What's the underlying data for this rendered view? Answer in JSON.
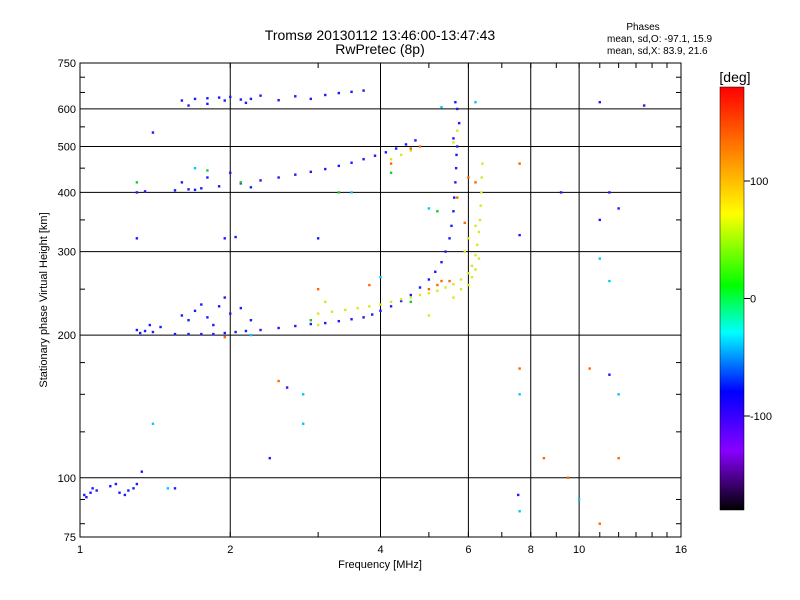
{
  "chart_data": {
    "type": "scatter",
    "title": "Tromsø 20130112 13:46:00-13:47:43",
    "subtitle": "RwPretec (8p)",
    "xlabel": "Frequency [MHz]",
    "ylabel": "Stationary phase Virtual Height [km]",
    "x_scale": "log",
    "y_scale": "log",
    "xlim": [
      1,
      16
    ],
    "ylim": [
      75,
      750
    ],
    "x_ticks": [
      1,
      2,
      4,
      6,
      8,
      10,
      16
    ],
    "y_ticks": [
      75,
      100,
      200,
      300,
      400,
      500,
      600,
      750
    ],
    "x_gridlines": [
      2,
      4,
      6,
      8,
      10
    ],
    "y_gridlines": [
      100,
      200,
      300,
      400,
      500,
      600
    ],
    "grid": true,
    "stats": {
      "heading": "Phases",
      "line_o": "mean, sd,O: -97.1, 15.9",
      "line_x": "mean, sd,X:  83.9, 21.6"
    },
    "colorbar": {
      "label": "[deg]",
      "range": [
        -180,
        180
      ],
      "ticks": [
        100,
        0,
        -100
      ],
      "tick_labels": [
        "100",
        "0",
        "-100"
      ],
      "colors": [
        "#ff0000",
        "#ff8800",
        "#ffff00",
        "#00ff00",
        "#00ffff",
        "#0000ff",
        "#8800ff",
        "#000000"
      ]
    },
    "series": [
      {
        "mode": "O",
        "phase_deg": -100,
        "color": "#1a1aff",
        "points": [
          [
            1.02,
            92
          ],
          [
            1.05,
            93
          ],
          [
            1.08,
            94
          ],
          [
            1.03,
            91
          ],
          [
            1.06,
            95
          ],
          [
            1.15,
            96
          ],
          [
            1.2,
            93
          ],
          [
            1.25,
            94
          ],
          [
            1.28,
            95
          ],
          [
            1.3,
            97
          ],
          [
            1.33,
            103
          ],
          [
            1.23,
            92
          ],
          [
            1.18,
            97
          ],
          [
            1.3,
            205
          ],
          [
            1.35,
            204
          ],
          [
            1.4,
            203
          ],
          [
            1.32,
            202
          ],
          [
            1.45,
            208
          ],
          [
            1.38,
            210
          ],
          [
            1.55,
            201
          ],
          [
            1.65,
            201
          ],
          [
            1.75,
            201
          ],
          [
            1.85,
            201
          ],
          [
            1.95,
            202
          ],
          [
            2.05,
            203
          ],
          [
            2.15,
            204
          ],
          [
            2.3,
            205
          ],
          [
            2.5,
            207
          ],
          [
            2.7,
            209
          ],
          [
            2.9,
            211
          ],
          [
            3.1,
            212
          ],
          [
            3.3,
            214
          ],
          [
            3.5,
            216
          ],
          [
            3.7,
            218
          ],
          [
            3.85,
            221
          ],
          [
            4.0,
            225
          ],
          [
            4.2,
            230
          ],
          [
            4.4,
            236
          ],
          [
            4.6,
            243
          ],
          [
            4.8,
            252
          ],
          [
            5.0,
            262
          ],
          [
            5.15,
            272
          ],
          [
            5.3,
            285
          ],
          [
            5.4,
            300
          ],
          [
            5.5,
            320
          ],
          [
            5.55,
            340
          ],
          [
            5.6,
            365
          ],
          [
            5.62,
            390
          ],
          [
            5.65,
            420
          ],
          [
            5.67,
            450
          ],
          [
            5.68,
            480
          ],
          [
            5.7,
            500
          ],
          [
            1.6,
            220
          ],
          [
            1.7,
            225
          ],
          [
            1.8,
            218
          ],
          [
            1.9,
            230
          ],
          [
            2.0,
            222
          ],
          [
            2.1,
            228
          ],
          [
            2.2,
            215
          ],
          [
            1.65,
            215
          ],
          [
            1.75,
            232
          ],
          [
            1.85,
            210
          ],
          [
            1.95,
            240
          ],
          [
            1.3,
            400
          ],
          [
            1.35,
            402
          ],
          [
            1.55,
            404
          ],
          [
            1.65,
            406
          ],
          [
            1.75,
            408
          ],
          [
            1.9,
            412
          ],
          [
            2.1,
            418
          ],
          [
            2.3,
            424
          ],
          [
            2.5,
            430
          ],
          [
            2.7,
            436
          ],
          [
            2.9,
            442
          ],
          [
            3.1,
            448
          ],
          [
            3.3,
            455
          ],
          [
            3.5,
            462
          ],
          [
            3.7,
            470
          ],
          [
            3.9,
            478
          ],
          [
            4.1,
            486
          ],
          [
            4.3,
            495
          ],
          [
            4.5,
            505
          ],
          [
            4.7,
            515
          ],
          [
            1.6,
            420
          ],
          [
            1.8,
            430
          ],
          [
            2.0,
            440
          ],
          [
            2.2,
            410
          ],
          [
            1.7,
            405
          ],
          [
            1.6,
            625
          ],
          [
            1.7,
            630
          ],
          [
            1.8,
            632
          ],
          [
            1.9,
            634
          ],
          [
            2.0,
            636
          ],
          [
            2.1,
            628
          ],
          [
            2.2,
            630
          ],
          [
            2.3,
            640
          ],
          [
            2.5,
            626
          ],
          [
            2.7,
            638
          ],
          [
            2.9,
            630
          ],
          [
            3.1,
            642
          ],
          [
            3.3,
            648
          ],
          [
            3.5,
            652
          ],
          [
            3.7,
            656
          ],
          [
            1.65,
            610
          ],
          [
            1.8,
            615
          ],
          [
            1.95,
            625
          ],
          [
            2.15,
            618
          ],
          [
            1.4,
            535
          ],
          [
            1.3,
            320
          ],
          [
            1.95,
            320
          ],
          [
            2.05,
            322
          ],
          [
            3.0,
            320
          ],
          [
            2.6,
            155
          ],
          [
            2.4,
            110
          ],
          [
            1.55,
            95
          ],
          [
            5.65,
            620
          ],
          [
            5.7,
            600
          ],
          [
            5.75,
            560
          ],
          [
            5.6,
            520
          ],
          [
            7.6,
            325
          ],
          [
            7.55,
            92
          ],
          [
            11.0,
            620
          ],
          [
            13.5,
            610
          ],
          [
            11.5,
            400
          ],
          [
            12.0,
            370
          ],
          [
            11.0,
            350
          ],
          [
            9.2,
            400
          ],
          [
            11.5,
            165
          ]
        ]
      },
      {
        "mode": "X",
        "phase_deg": 85,
        "color": "#d8e81a",
        "points": [
          [
            3.0,
            222
          ],
          [
            3.2,
            224
          ],
          [
            3.4,
            226
          ],
          [
            3.6,
            228
          ],
          [
            3.8,
            230
          ],
          [
            4.0,
            232
          ],
          [
            4.2,
            235
          ],
          [
            4.4,
            238
          ],
          [
            4.6,
            240
          ],
          [
            4.8,
            243
          ],
          [
            5.0,
            245
          ],
          [
            5.2,
            248
          ],
          [
            5.4,
            252
          ],
          [
            5.6,
            256
          ],
          [
            5.8,
            262
          ],
          [
            6.0,
            270
          ],
          [
            6.1,
            280
          ],
          [
            6.2,
            295
          ],
          [
            6.25,
            310
          ],
          [
            6.3,
            330
          ],
          [
            6.33,
            350
          ],
          [
            6.35,
            375
          ],
          [
            6.37,
            400
          ],
          [
            6.38,
            430
          ],
          [
            6.4,
            460
          ],
          [
            5.6,
            240
          ],
          [
            5.8,
            250
          ],
          [
            6.0,
            255
          ],
          [
            6.1,
            265
          ],
          [
            6.2,
            275
          ],
          [
            6.3,
            290
          ],
          [
            5.9,
            300
          ],
          [
            6.0,
            320
          ],
          [
            6.2,
            340
          ],
          [
            4.2,
            470
          ],
          [
            4.4,
            480
          ],
          [
            4.6,
            490
          ],
          [
            5.6,
            510
          ],
          [
            5.7,
            540
          ],
          [
            3.1,
            235
          ],
          [
            3.0,
            210
          ],
          [
            5.0,
            220
          ]
        ]
      },
      {
        "mode": "mixed",
        "phase_deg": 150,
        "color": "#ff6600",
        "points": [
          [
            5.0,
            250
          ],
          [
            5.2,
            255
          ],
          [
            5.5,
            260
          ],
          [
            5.3,
            260
          ],
          [
            6.0,
            430
          ],
          [
            6.2,
            420
          ],
          [
            4.6,
            495
          ],
          [
            4.8,
            500
          ],
          [
            3.0,
            250
          ],
          [
            7.6,
            460
          ],
          [
            7.6,
            170
          ],
          [
            8.5,
            110
          ],
          [
            9.5,
            100
          ],
          [
            10.5,
            170
          ],
          [
            11.0,
            80
          ],
          [
            12.0,
            110
          ],
          [
            5.9,
            345
          ],
          [
            5.7,
            390
          ],
          [
            4.2,
            460
          ],
          [
            3.8,
            255
          ],
          [
            1.95,
            198
          ],
          [
            2.5,
            160
          ]
        ]
      },
      {
        "mode": "mixed",
        "phase_deg": -40,
        "color": "#00c8ff",
        "points": [
          [
            1.4,
            130
          ],
          [
            1.5,
            95
          ],
          [
            2.8,
            130
          ],
          [
            2.8,
            150
          ],
          [
            4.0,
            265
          ],
          [
            3.5,
            400
          ],
          [
            5.0,
            370
          ],
          [
            7.6,
            150
          ],
          [
            7.6,
            85
          ],
          [
            10.0,
            90
          ],
          [
            11.0,
            290
          ],
          [
            11.5,
            260
          ],
          [
            12.0,
            150
          ],
          [
            5.3,
            605
          ],
          [
            6.2,
            620
          ],
          [
            1.7,
            450
          ],
          [
            2.2,
            200
          ]
        ]
      },
      {
        "mode": "mixed",
        "phase_deg": 30,
        "color": "#22c822",
        "points": [
          [
            1.3,
            420
          ],
          [
            1.8,
            445
          ],
          [
            2.1,
            420
          ],
          [
            4.2,
            440
          ],
          [
            3.3,
            400
          ],
          [
            5.2,
            365
          ],
          [
            2.9,
            215
          ],
          [
            4.6,
            235
          ]
        ]
      }
    ]
  }
}
